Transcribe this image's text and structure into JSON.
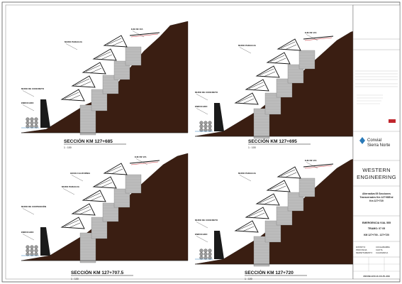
{
  "sections": [
    {
      "title": "SECCIÓN KM 127+685",
      "scale": "1 : 100",
      "labels": [
        "EJE DE VIA",
        "MURO PARAGUA",
        "MURO DE CONCRETO",
        "ENROCADO"
      ]
    },
    {
      "title": "SECCIÓN KM 127+695",
      "scale": "1 : 100",
      "labels": [
        "EJE DE VIA",
        "MURO PARAGUA",
        "MURO DE CONCRETO",
        "ENROCADO"
      ]
    },
    {
      "title": "SECCIÓN KM 127+707.5",
      "scale": "1 : 100",
      "labels": [
        "EJE DE VIA",
        "GRAN CALIFORNIA",
        "MURO PARAGUA",
        "MURO DE CONTENCIÓN",
        "ENROCADO"
      ]
    },
    {
      "title": "SECCIÓN KM 127+720",
      "scale": "1 : 100",
      "labels": [
        "EJE DE VIA",
        "MURO PARAGUA",
        "MURO DE CONCRETO",
        "ENROCADO"
      ]
    }
  ],
  "title_block": {
    "client_logo_text": [
      "Convial",
      "Sierra Norte"
    ],
    "company": [
      "WESTERN",
      "ENGINEERING"
    ],
    "drawing_description": [
      "Alternativa 05 Secciones",
      "Transversales Km 127+685 al",
      "Km 127+720"
    ],
    "project": "EMERGENCIA VIAL 555",
    "tramo": "TRAMO: 07 05",
    "range": "KM 127+700 - 127+720",
    "location": [
      "DISTRITO:",
      "PROVINCIA:",
      "DEPARTAMENTO:"
    ],
    "location_values": [
      "COCHABAMBA",
      "CHOTA",
      "CAJAMARCA"
    ],
    "drawing_number": "2021SE-EVC-D-CO-PL-009"
  },
  "colors": {
    "rock": "#3a1e12",
    "gabion": "#bcbcbc",
    "gabion_line": "#6a6a6a",
    "concrete": "#1a1a1a",
    "accent_red": "#c0262d",
    "brand_blue": "#2a7ab8"
  }
}
